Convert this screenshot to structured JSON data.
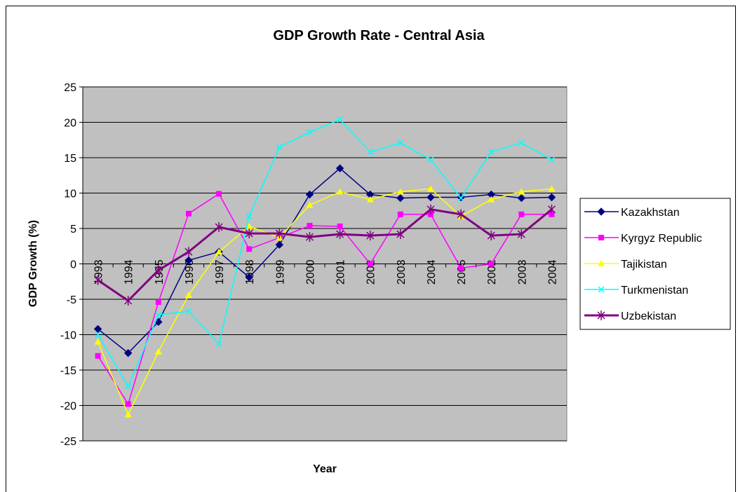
{
  "chart_data": {
    "type": "line",
    "title": "GDP Growth Rate - Central Asia",
    "x_label": "Year",
    "y_label": "GDP Growth (%)",
    "categories": [
      "1993",
      "1994",
      "1995",
      "1996",
      "1997",
      "1998",
      "1999",
      "2000",
      "2001",
      "2002",
      "2003",
      "2004",
      "2005",
      "2002",
      "2003",
      "2004"
    ],
    "series": [
      {
        "name": "Kazakhstan",
        "color": "#000080",
        "marker": "diamond",
        "values": [
          -9.2,
          -12.6,
          -8.2,
          0.5,
          1.7,
          -1.9,
          2.7,
          9.8,
          13.5,
          9.8,
          9.3,
          9.4,
          9.4,
          9.8,
          9.3,
          9.4
        ]
      },
      {
        "name": "Kyrgyz Republic",
        "color": "#ff00ff",
        "marker": "square",
        "values": [
          -13,
          -19.8,
          -5.4,
          7.1,
          9.9,
          2.1,
          3.7,
          5.4,
          5.3,
          0,
          7,
          7,
          -0.6,
          0,
          7,
          7
        ]
      },
      {
        "name": "Tajikistan",
        "color": "#ffff00",
        "marker": "triangle",
        "values": [
          -11,
          -21.3,
          -12.4,
          -4.4,
          1.7,
          5.3,
          3.7,
          8.3,
          10.2,
          9.1,
          10.2,
          10.6,
          6.7,
          9.1,
          10.2,
          10.6
        ]
      },
      {
        "name": "Turkmenistan",
        "color": "#00ffff",
        "marker": "x",
        "values": [
          -10,
          -17.3,
          -7.2,
          -6.7,
          -11.3,
          6.7,
          16.5,
          18.6,
          20.4,
          15.8,
          17.1,
          14.7,
          9.3,
          15.8,
          17.1,
          14.7
        ]
      },
      {
        "name": "Uzbekistan",
        "color": "#800080",
        "marker": "star",
        "width": 3,
        "values": [
          -2.3,
          -5.2,
          -0.9,
          1.7,
          5.2,
          4.3,
          4.3,
          3.8,
          4.2,
          4.0,
          4.2,
          7.7,
          7.0,
          4.0,
          4.2,
          7.7
        ]
      }
    ],
    "ylim": [
      -25,
      25
    ],
    "yticks": [
      -25,
      -20,
      -15,
      -10,
      -5,
      0,
      5,
      10,
      15,
      20,
      25
    ],
    "grid": true,
    "legend": "right",
    "plot_background": "#c0c0c0"
  }
}
